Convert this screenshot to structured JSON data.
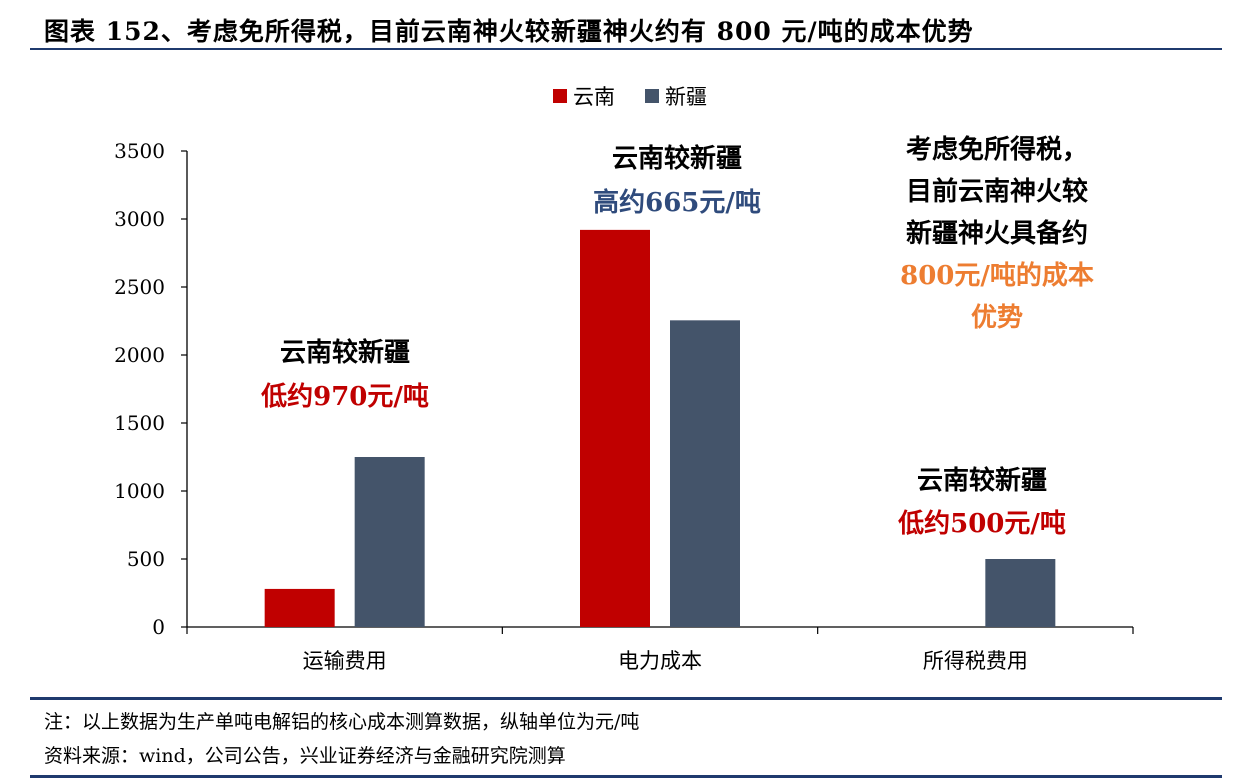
{
  "figure": {
    "title": "图表 152、考虑免所得税，目前云南神火较新疆神火约有 800 元/吨的成本优势",
    "note": "注：以上数据为生产单吨电解铝的核心成本测算数据，纵轴单位为元/吨",
    "source": "资料来源：wind，公司公告，兴业证券经济与金融研究院测算"
  },
  "chart_data": {
    "type": "bar",
    "categories": [
      "运输费用",
      "电力成本",
      "所得税费用"
    ],
    "series": [
      {
        "name": "云南",
        "values": [
          280,
          2920,
          0
        ],
        "color": "#c00000"
      },
      {
        "name": "新疆",
        "values": [
          1250,
          2255,
          500
        ],
        "color": "#44546a"
      }
    ],
    "ylim": [
      0,
      3500
    ],
    "yticks": [
      0,
      500,
      1000,
      1500,
      2000,
      2500,
      3000,
      3500
    ],
    "legend_position": "top-center",
    "grid": false,
    "annotations": [
      {
        "lines": [
          {
            "text": "云南较新疆",
            "color": "#000000"
          },
          {
            "text": "低约970元/吨",
            "color": "#c00000"
          }
        ]
      },
      {
        "lines": [
          {
            "text": "云南较新疆",
            "color": "#000000"
          },
          {
            "text": "高约665元/吨",
            "color": "#2f4b7c"
          }
        ]
      },
      {
        "lines": [
          {
            "text": "考虑免所得税，",
            "color": "#000000"
          },
          {
            "text": "目前云南神火较",
            "color": "#000000"
          },
          {
            "text": "新疆神火具备约",
            "color": "#000000"
          },
          {
            "text": "800元/吨的成本",
            "color": "#ed7d31"
          },
          {
            "text": "优势",
            "color": "#ed7d31"
          }
        ]
      },
      {
        "lines": [
          {
            "text": "云南较新疆",
            "color": "#000000"
          },
          {
            "text": "低约500元/吨",
            "color": "#c00000"
          }
        ]
      }
    ]
  }
}
